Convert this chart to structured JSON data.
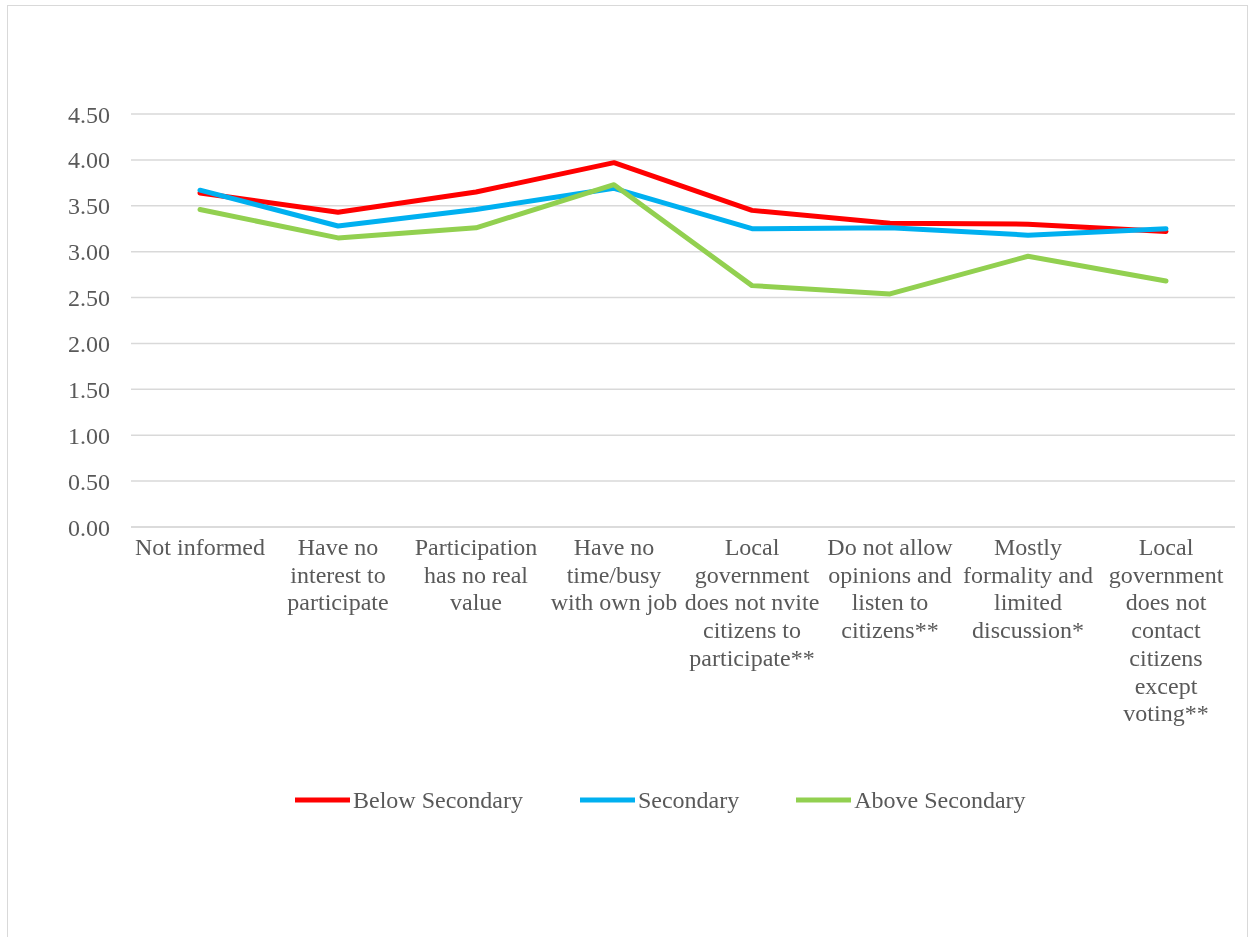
{
  "chart_data": {
    "type": "line",
    "categories": [
      "Not informed",
      "Have no interest to participate",
      "Participation has no real value",
      "Have no time/busy with own job",
      "Local government does not nvite citizens to participate**",
      "Do not allow opinions and listen to citizens**",
      "Mostly formality and limited discussion*",
      "Local government does not contact citizens except voting**"
    ],
    "series": [
      {
        "name": "Below Secondary",
        "color": "#ff0000",
        "values": [
          3.64,
          3.43,
          3.65,
          3.97,
          3.45,
          3.31,
          3.3,
          3.22
        ]
      },
      {
        "name": "Secondary",
        "color": "#00b0f0",
        "values": [
          3.67,
          3.28,
          3.46,
          3.69,
          3.25,
          3.26,
          3.18,
          3.25
        ]
      },
      {
        "name": "Above Secondary",
        "color": "#92d050",
        "values": [
          3.46,
          3.15,
          3.26,
          3.73,
          2.63,
          2.54,
          2.95,
          2.68
        ]
      }
    ],
    "ylim": [
      0,
      4.5
    ],
    "yticks": [
      {
        "value": 0,
        "label": "0.00"
      },
      {
        "value": 0.5,
        "label": "0.50"
      },
      {
        "value": 1,
        "label": "1.00"
      },
      {
        "value": 1.5,
        "label": "1.50"
      },
      {
        "value": 2,
        "label": "2.00"
      },
      {
        "value": 2.5,
        "label": "2.50"
      },
      {
        "value": 3,
        "label": "3.00"
      },
      {
        "value": 3.5,
        "label": "3.50"
      },
      {
        "value": 4,
        "label": "4.00"
      },
      {
        "value": 4.5,
        "label": "4.50"
      }
    ],
    "grid": "y",
    "legend": "bottom",
    "marker": "none",
    "line_style": "solid"
  }
}
